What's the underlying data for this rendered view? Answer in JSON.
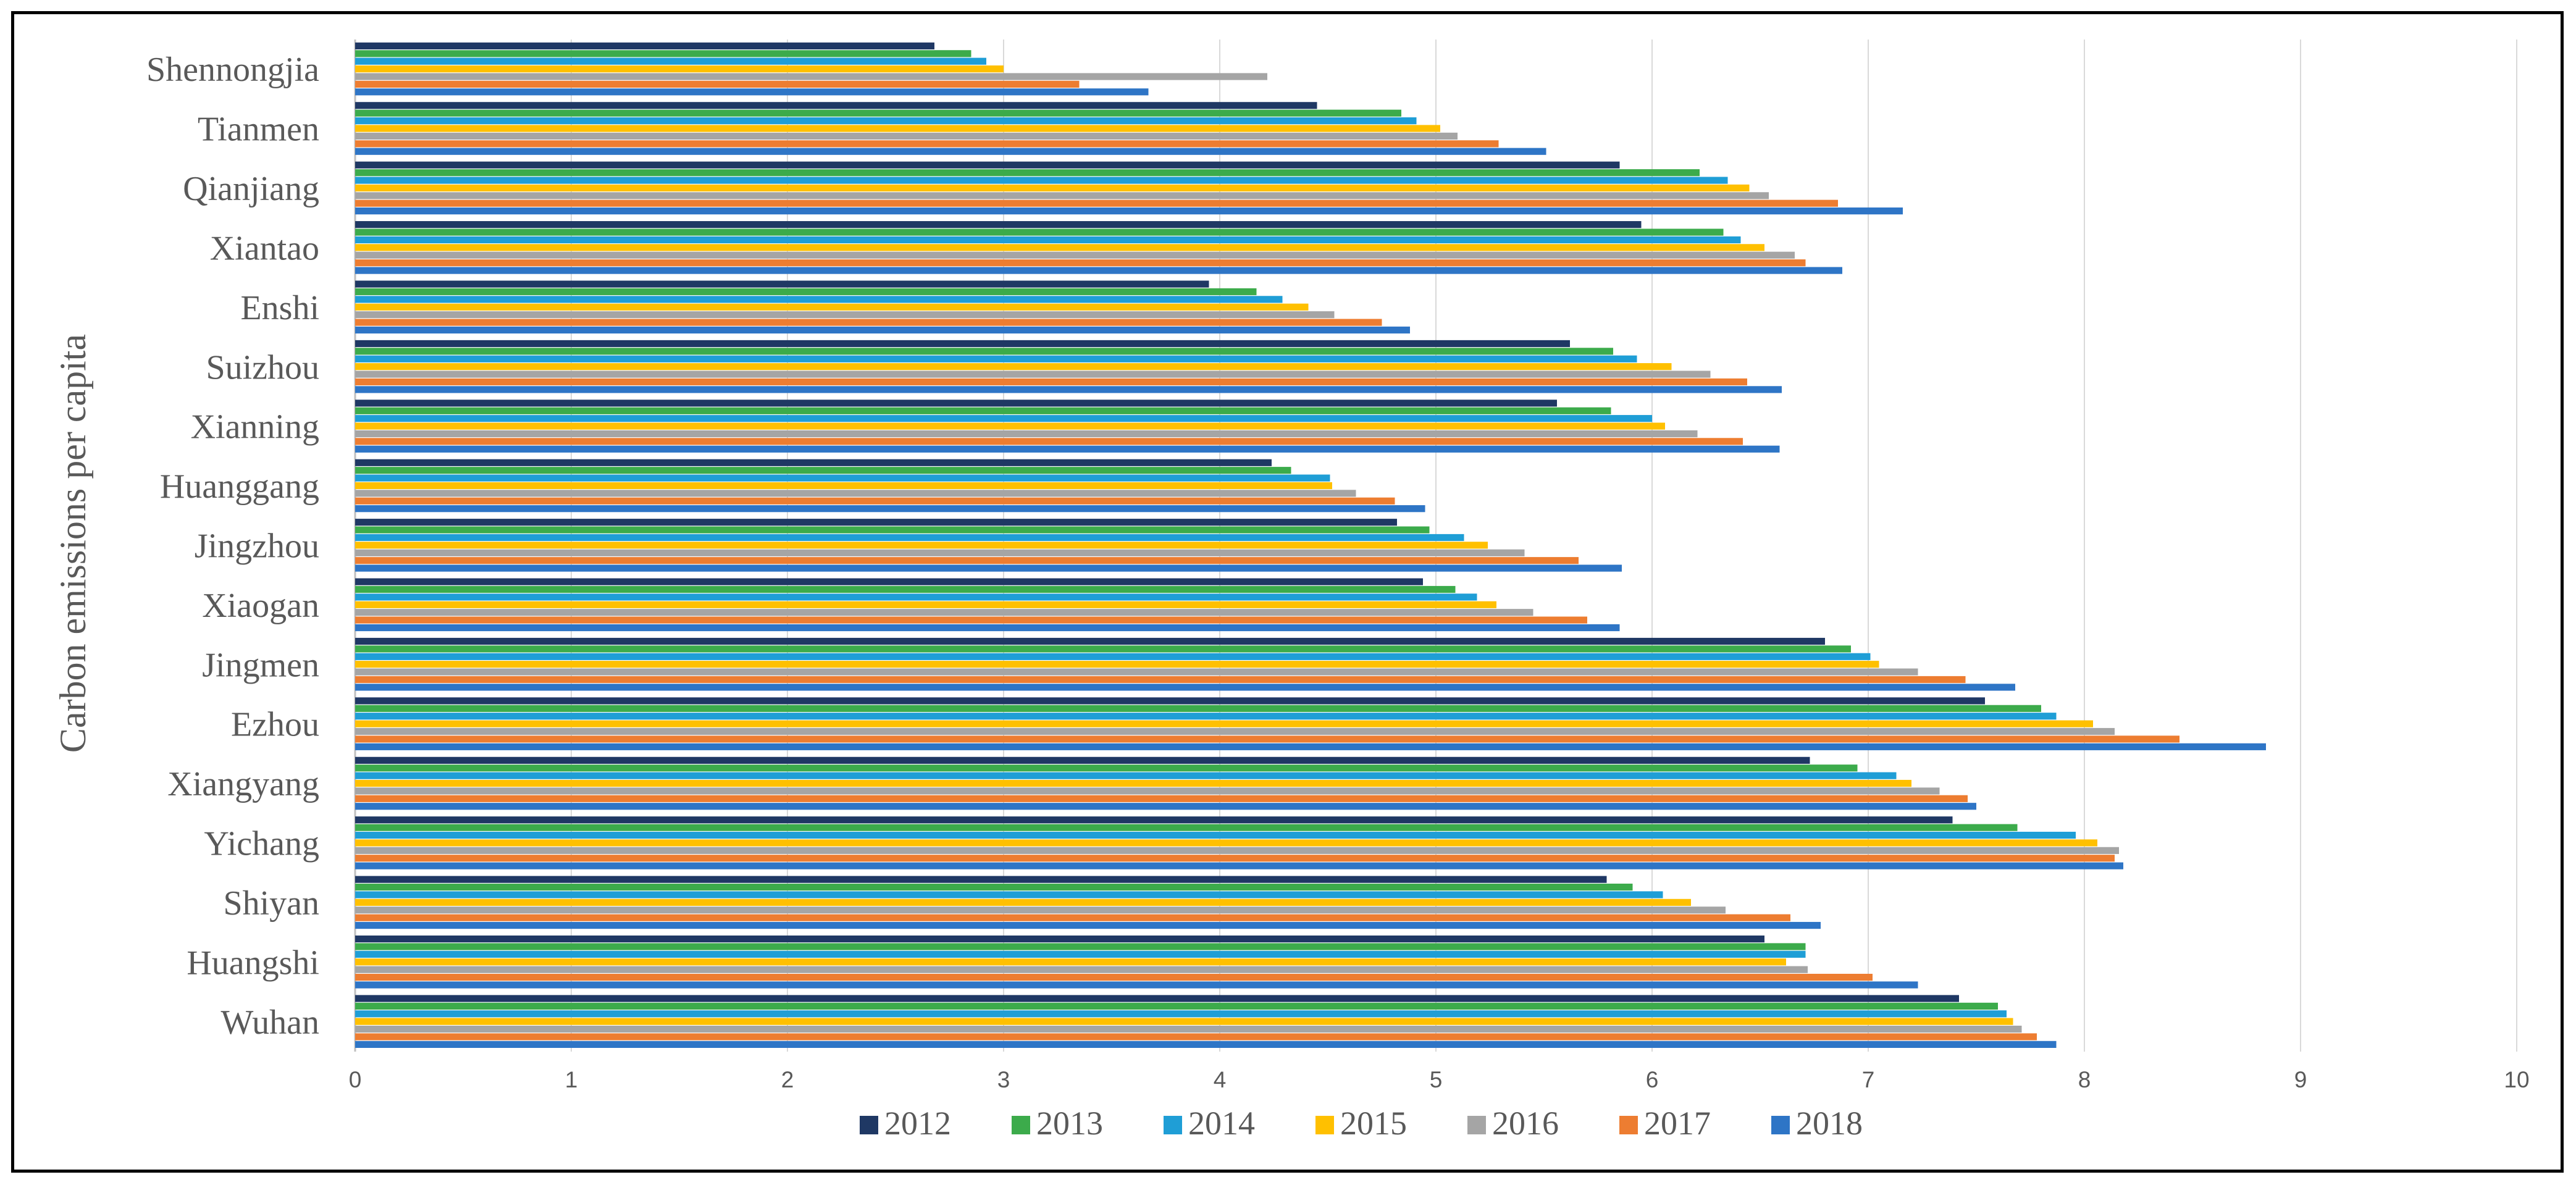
{
  "chart_data": {
    "type": "bar",
    "orientation": "horizontal",
    "title": "",
    "xlabel": "",
    "ylabel": "Carbon emissions per capita",
    "xlim": [
      0,
      10
    ],
    "x_ticks": [
      "0",
      "1",
      "2",
      "3",
      "4",
      "5",
      "6",
      "7",
      "8",
      "9",
      "10"
    ],
    "grid": true,
    "legend_position": "bottom",
    "categories": [
      "Shennongjia",
      "Tianmen",
      "Qianjiang",
      "Xiantao",
      "Enshi",
      "Suizhou",
      "Xianning",
      "Huanggang",
      "Jingzhou",
      "Xiaogan",
      "Jingmen",
      "Ezhou",
      "Xiangyang",
      "Yichang",
      "Shiyan",
      "Huangshi",
      "Wuhan"
    ],
    "series": [
      {
        "name": "2012",
        "color": "#1f3864",
        "values": [
          2.68,
          4.45,
          5.85,
          5.95,
          3.95,
          5.62,
          5.56,
          4.24,
          4.82,
          4.94,
          6.8,
          7.54,
          6.73,
          7.39,
          5.79,
          6.52,
          7.42
        ]
      },
      {
        "name": "2013",
        "color": "#3cab4b",
        "values": [
          2.85,
          4.84,
          6.22,
          6.33,
          4.17,
          5.82,
          5.81,
          4.33,
          4.97,
          5.09,
          6.92,
          7.8,
          6.95,
          7.69,
          5.91,
          6.71,
          7.6
        ]
      },
      {
        "name": "2014",
        "color": "#1f9ed6",
        "values": [
          2.92,
          4.91,
          6.35,
          6.41,
          4.29,
          5.93,
          6.0,
          4.51,
          5.13,
          5.19,
          7.01,
          7.87,
          7.13,
          7.96,
          6.05,
          6.71,
          7.64
        ]
      },
      {
        "name": "2015",
        "color": "#ffc000",
        "values": [
          3.0,
          5.02,
          6.45,
          6.52,
          4.41,
          6.09,
          6.06,
          4.52,
          5.24,
          5.28,
          7.05,
          8.04,
          7.2,
          8.06,
          6.18,
          6.62,
          7.67
        ]
      },
      {
        "name": "2016",
        "color": "#a5a5a5",
        "values": [
          4.22,
          5.1,
          6.54,
          6.66,
          4.53,
          6.27,
          6.21,
          4.63,
          5.41,
          5.45,
          7.23,
          8.14,
          7.33,
          8.16,
          6.34,
          6.72,
          7.71
        ]
      },
      {
        "name": "2017",
        "color": "#ed7d31",
        "values": [
          3.35,
          5.29,
          6.86,
          6.71,
          4.75,
          6.44,
          6.42,
          4.81,
          5.66,
          5.7,
          7.45,
          8.44,
          7.46,
          8.14,
          6.64,
          7.02,
          7.78
        ]
      },
      {
        "name": "2018",
        "color": "#2e75c6",
        "values": [
          3.67,
          5.51,
          7.16,
          6.88,
          4.88,
          6.6,
          6.59,
          4.95,
          5.86,
          5.85,
          7.68,
          8.84,
          7.5,
          8.18,
          6.78,
          7.23,
          7.87
        ]
      }
    ]
  }
}
